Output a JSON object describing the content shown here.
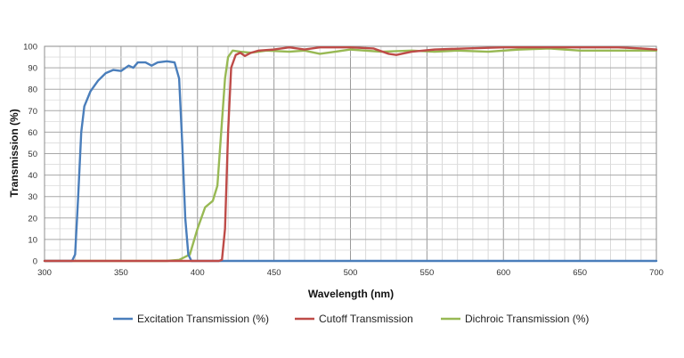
{
  "chart_data": {
    "type": "line",
    "title": "",
    "xlabel": "Wavelength (nm)",
    "ylabel": "Transmission (%)",
    "xlim": [
      300,
      700
    ],
    "ylim": [
      0,
      100
    ],
    "x_ticks": [
      300,
      350,
      400,
      450,
      500,
      550,
      600,
      650,
      700
    ],
    "y_ticks": [
      0,
      10,
      20,
      30,
      40,
      50,
      60,
      70,
      80,
      90,
      100
    ],
    "grid": true,
    "legend_position": "bottom",
    "series": [
      {
        "name": "Excitation Transmission (%)",
        "color": "#4a7ebb",
        "points": [
          [
            300,
            0
          ],
          [
            318,
            0
          ],
          [
            320,
            3
          ],
          [
            322,
            30
          ],
          [
            324,
            60
          ],
          [
            326,
            72
          ],
          [
            330,
            79
          ],
          [
            335,
            84
          ],
          [
            340,
            87.5
          ],
          [
            345,
            89
          ],
          [
            350,
            88.5
          ],
          [
            355,
            91
          ],
          [
            358,
            90
          ],
          [
            361,
            92.5
          ],
          [
            366,
            92.5
          ],
          [
            370,
            91
          ],
          [
            374,
            92.5
          ],
          [
            380,
            93
          ],
          [
            385,
            92.5
          ],
          [
            388,
            85
          ],
          [
            390,
            55
          ],
          [
            392,
            20
          ],
          [
            394,
            3
          ],
          [
            396,
            0
          ],
          [
            700,
            0
          ]
        ]
      },
      {
        "name": "Cutoff Transmission",
        "color": "#be4b48",
        "points": [
          [
            300,
            0
          ],
          [
            414,
            0
          ],
          [
            416,
            0.5
          ],
          [
            418,
            15
          ],
          [
            420,
            60
          ],
          [
            422,
            90
          ],
          [
            425,
            96
          ],
          [
            428,
            97
          ],
          [
            431,
            95.5
          ],
          [
            435,
            97
          ],
          [
            440,
            98
          ],
          [
            450,
            98.5
          ],
          [
            460,
            99.5
          ],
          [
            470,
            98.5
          ],
          [
            480,
            99.5
          ],
          [
            500,
            99.5
          ],
          [
            515,
            99
          ],
          [
            525,
            96.5
          ],
          [
            530,
            96
          ],
          [
            540,
            97.5
          ],
          [
            555,
            98.5
          ],
          [
            575,
            99
          ],
          [
            600,
            99.5
          ],
          [
            650,
            99.5
          ],
          [
            675,
            99.5
          ],
          [
            690,
            99
          ],
          [
            700,
            98.5
          ]
        ]
      },
      {
        "name": "Dichroic Transmission (%)",
        "color": "#98b954",
        "points": [
          [
            300,
            0
          ],
          [
            380,
            0
          ],
          [
            388,
            0.5
          ],
          [
            395,
            3
          ],
          [
            400,
            15
          ],
          [
            405,
            25
          ],
          [
            410,
            28
          ],
          [
            413,
            35
          ],
          [
            416,
            65
          ],
          [
            418,
            85
          ],
          [
            420,
            95
          ],
          [
            423,
            98
          ],
          [
            428,
            97.5
          ],
          [
            435,
            97
          ],
          [
            445,
            98
          ],
          [
            460,
            97.5
          ],
          [
            470,
            98
          ],
          [
            480,
            96.5
          ],
          [
            490,
            97.5
          ],
          [
            500,
            98.5
          ],
          [
            520,
            97.5
          ],
          [
            540,
            98
          ],
          [
            555,
            97.5
          ],
          [
            570,
            98
          ],
          [
            590,
            97.5
          ],
          [
            610,
            98.5
          ],
          [
            630,
            99
          ],
          [
            650,
            98
          ],
          [
            670,
            98
          ],
          [
            690,
            98
          ],
          [
            700,
            98
          ]
        ]
      }
    ]
  }
}
